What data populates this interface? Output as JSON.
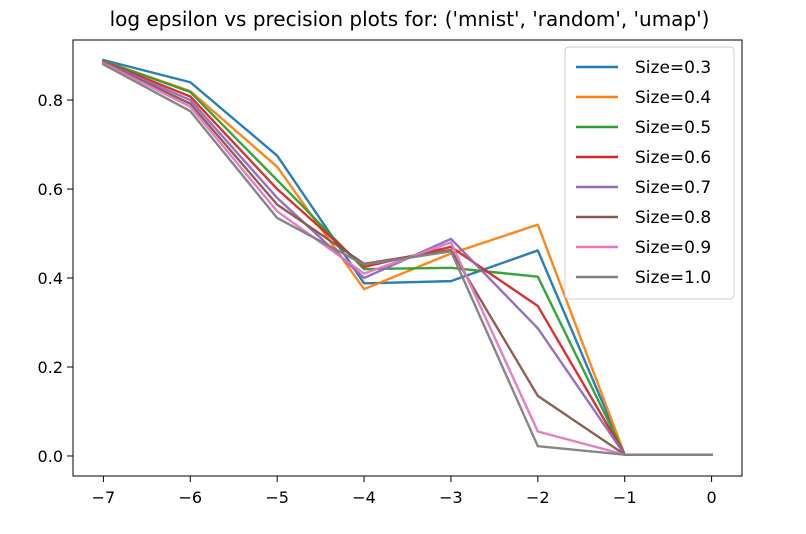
{
  "chart_data": {
    "type": "line",
    "title": "log epsilon vs precision plots for: ('mnist', 'random', 'umap')",
    "xlabel": "",
    "ylabel": "",
    "x": [
      -7,
      -6,
      -5,
      -4,
      -3,
      -2,
      -1,
      0
    ],
    "xticks": [
      -7,
      -6,
      -5,
      -4,
      -3,
      -2,
      -1,
      0
    ],
    "xtick_labels": [
      "−7",
      "−6",
      "−5",
      "−4",
      "−3",
      "−2",
      "−1",
      "0"
    ],
    "yticks": [
      0.0,
      0.2,
      0.4,
      0.6,
      0.8
    ],
    "ytick_labels": [
      "0.0",
      "0.2",
      "0.4",
      "0.6",
      "0.8"
    ],
    "xlim": [
      -7.35,
      0.35
    ],
    "ylim": [
      -0.045,
      0.935
    ],
    "grid": false,
    "legend_position": "upper right",
    "series": [
      {
        "name": "Size=0.3",
        "color": "#1f77b4",
        "values": [
          0.89,
          0.84,
          0.675,
          0.388,
          0.393,
          0.462,
          0.003,
          0.003
        ]
      },
      {
        "name": "Size=0.4",
        "color": "#ff7f0e",
        "values": [
          0.888,
          0.82,
          0.65,
          0.375,
          0.455,
          0.52,
          0.003,
          0.003
        ]
      },
      {
        "name": "Size=0.5",
        "color": "#2ca02c",
        "values": [
          0.888,
          0.818,
          0.62,
          0.42,
          0.423,
          0.403,
          0.003,
          0.003
        ]
      },
      {
        "name": "Size=0.6",
        "color": "#d62728",
        "values": [
          0.886,
          0.808,
          0.6,
          0.425,
          0.47,
          0.337,
          0.003,
          0.003
        ]
      },
      {
        "name": "Size=0.7",
        "color": "#9467bd",
        "values": [
          0.885,
          0.8,
          0.58,
          0.4,
          0.488,
          0.287,
          0.003,
          0.003
        ]
      },
      {
        "name": "Size=0.8",
        "color": "#8c564b",
        "values": [
          0.884,
          0.792,
          0.565,
          0.432,
          0.463,
          0.135,
          0.003,
          0.003
        ]
      },
      {
        "name": "Size=0.9",
        "color": "#e377c2",
        "values": [
          0.883,
          0.785,
          0.55,
          0.41,
          0.48,
          0.055,
          0.003,
          0.003
        ]
      },
      {
        "name": "Size=1.0",
        "color": "#7f7f7f",
        "values": [
          0.88,
          0.775,
          0.535,
          0.43,
          0.46,
          0.022,
          0.003,
          0.003
        ]
      }
    ]
  }
}
